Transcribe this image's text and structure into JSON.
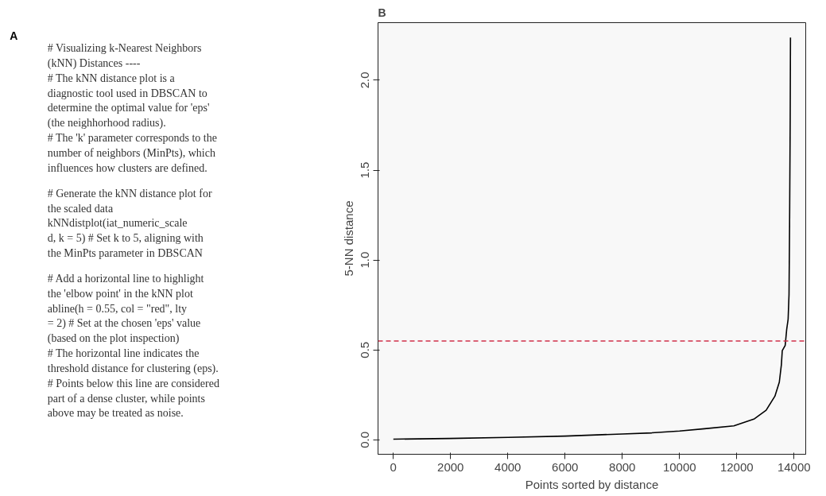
{
  "chart_data": [
    {
      "type": "other",
      "title": "A",
      "annotations": [
        "# Visualizing k-Nearest Neighbors\n(kNN) Distances ----\n# The kNN distance plot is a\ndiagnostic tool used in DBSCAN to\ndetermine the optimal value for 'eps'\n(the neighhorhood radius).\n# The 'k' parameter corresponds to the\nnumber of neighbors (MinPts), which\ninfluences how clusters are defined.",
        "# Generate the kNN distance plot for\nthe scaled data\nkNNdistplot(iat_numeric_scale\nd, k = 5) # Set k to 5, aligning with\nthe MinPts parameter in DBSCAN",
        "# Add a horizontal line to highlight\nthe 'elbow point' in the kNN plot\nabline(h = 0.55, col = \"red\", lty\n= 2) # Set at the chosen 'eps' value\n(based on the plot inspection)\n# The horizontal line indicates the\nthreshold distance for clustering (eps).\n# Points below this line are considered\npart of a dense cluster, while points\nabove may be treated as noise."
      ]
    },
    {
      "type": "line",
      "title": "B",
      "xlabel": "Points sorted by distance",
      "ylabel": "5-NN distance",
      "x": [
        0,
        1957,
        4007,
        6006,
        8004,
        9030,
        10003,
        10874,
        11899,
        12616,
        13026,
        13333,
        13487,
        13559,
        13590,
        13692,
        13744,
        13795,
        13826,
        13846,
        13867,
        13877
      ],
      "series": [
        {
          "color": "#000000",
          "values": [
            0.004,
            0.008,
            0.014,
            0.021,
            0.033,
            0.039,
            0.049,
            0.062,
            0.078,
            0.117,
            0.165,
            0.243,
            0.321,
            0.418,
            0.496,
            0.525,
            0.613,
            0.671,
            0.807,
            1.196,
            1.78,
            2.237
          ]
        }
      ],
      "xlim": [
        -536,
        14410
      ],
      "ylim": [
        -0.08,
        2.32
      ],
      "xticks": [
        0,
        2000,
        4000,
        6000,
        8000,
        10000,
        12000,
        14000
      ],
      "yticks": [
        {
          "value": 0,
          "label": "0.0"
        },
        {
          "value": 0.5,
          "label": "0.5"
        },
        {
          "value": 1,
          "label": "1.0"
        },
        {
          "value": 1.5,
          "label": "1.5"
        },
        {
          "value": 2,
          "label": "2.0"
        }
      ],
      "ref_lines": [
        {
          "axis": "y",
          "value": 0.55,
          "color": "#d0304a",
          "line_style": "dashed"
        }
      ],
      "grid": false,
      "marker": "none",
      "line_style": "solid"
    }
  ]
}
